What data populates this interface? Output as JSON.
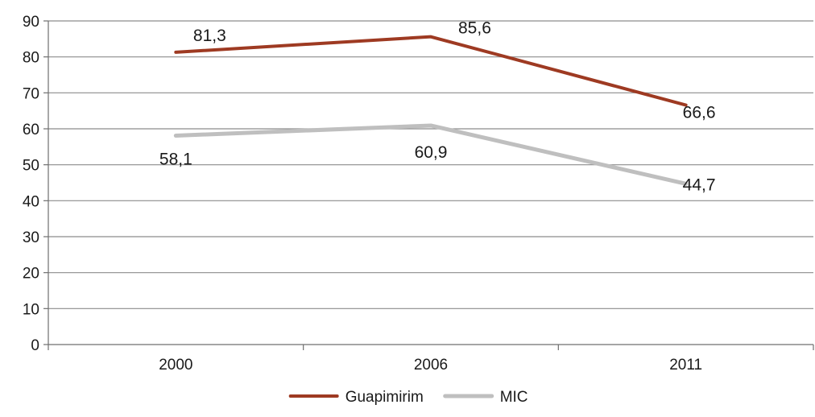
{
  "chart_data": {
    "type": "line",
    "title": "",
    "xlabel": "",
    "ylabel": "",
    "categories": [
      "2000",
      "2006",
      "2011"
    ],
    "ylim": [
      0,
      90
    ],
    "yticks": [
      0,
      10,
      20,
      30,
      40,
      50,
      60,
      70,
      80,
      90
    ],
    "grid": "horizontal",
    "legend": "bottom-center",
    "series": [
      {
        "name": "Guapimirim",
        "color": "#9e3a22",
        "values": [
          81.3,
          85.6,
          66.6
        ],
        "labels": [
          "81,3",
          "85,6",
          "66,6"
        ]
      },
      {
        "name": "MIC",
        "color": "#bfbfbf",
        "values": [
          58.1,
          60.9,
          44.7
        ],
        "labels": [
          "58,1",
          "60,9",
          "44,7"
        ]
      }
    ]
  }
}
